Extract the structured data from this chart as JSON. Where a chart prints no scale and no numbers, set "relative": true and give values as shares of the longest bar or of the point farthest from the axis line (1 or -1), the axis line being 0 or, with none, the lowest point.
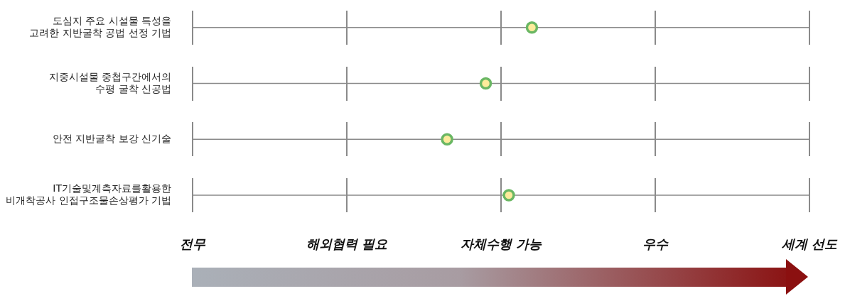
{
  "chart_data": {
    "type": "scatter",
    "orientation": "horizontal",
    "relative": true,
    "categories": [
      "도심지 주요 시설물 특성을\n고려한 지반굴착 공법 선정 기법",
      "지중시설물 중첩구간에서의\n수평 굴착 신공법",
      "안전 지반굴착 보강 신기술",
      "IT기술및계측자료를활용한\n비개착공사 인접구조물손상평가 기법"
    ],
    "series": [
      {
        "color": "#6ab763",
        "values": [
          1,
          0.864,
          0.75,
          0.932
        ]
      }
    ],
    "annotations": [
      "전무",
      "해외협력 필요",
      "자체수행 가능",
      "우수",
      "세계 선도"
    ],
    "grid": true,
    "marker": "circle",
    "legend": false
  }
}
